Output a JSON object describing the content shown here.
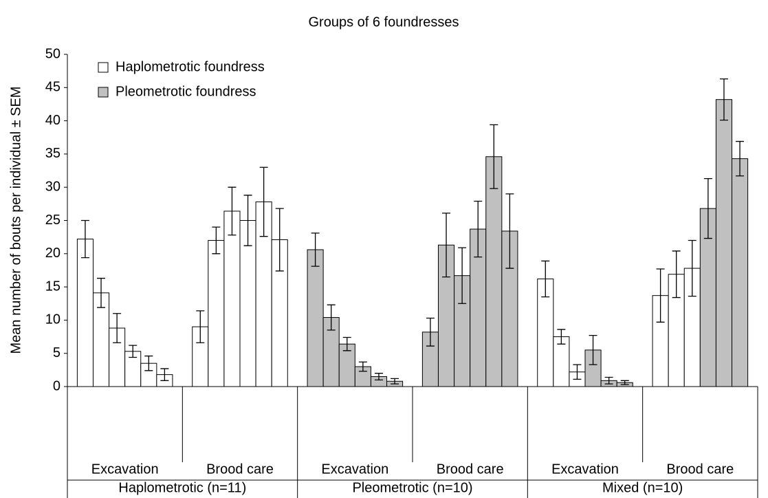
{
  "chart_data": {
    "type": "bar",
    "title": "Groups of 6 foundresses",
    "ylabel": "Mean number of bouts per individual ± SEM",
    "ylim": [
      0,
      50
    ],
    "yticks": [
      0,
      5,
      10,
      15,
      20,
      25,
      30,
      35,
      40,
      45,
      50
    ],
    "legend": "upper left",
    "groups": [
      {
        "label": "Haplometrotic (n=11)",
        "subgroups": [
          "Excavation",
          "Brood care"
        ]
      },
      {
        "label": "Pleometrotic (n=10)",
        "subgroups": [
          "Excavation",
          "Brood care"
        ]
      },
      {
        "label": "Mixed (n=10)",
        "subgroups": [
          "Excavation",
          "Brood care"
        ]
      }
    ],
    "series": [
      {
        "name": "Haplometrotic foundress",
        "color": "#ffffff",
        "values": [
          22.2,
          14.1,
          8.8,
          5.3,
          3.5,
          1.8,
          9,
          22,
          26.4,
          25,
          27.8,
          22.1,
          null,
          null,
          null,
          null,
          null,
          null,
          null,
          null,
          null,
          null,
          null,
          null,
          16.2,
          7.5,
          2.2,
          null,
          null,
          null,
          13.7,
          16.9,
          17.8,
          null,
          null,
          null
        ],
        "errors": [
          2.8,
          2.2,
          2.2,
          0.9,
          1.1,
          0.9,
          2.4,
          2,
          3.6,
          3.8,
          5.2,
          4.7,
          null,
          null,
          null,
          null,
          null,
          null,
          null,
          null,
          null,
          null,
          null,
          null,
          2.7,
          1.1,
          1.1,
          null,
          null,
          null,
          4,
          3.5,
          4.2,
          null,
          null,
          null
        ]
      },
      {
        "name": "Pleometrotic foundress",
        "color": "#c0c0c0",
        "values": [
          null,
          null,
          null,
          null,
          null,
          null,
          null,
          null,
          null,
          null,
          null,
          null,
          20.6,
          10.4,
          6.4,
          3,
          1.5,
          0.8,
          8.2,
          21.3,
          16.7,
          23.7,
          34.6,
          23.4,
          null,
          null,
          null,
          5.5,
          0.9,
          0.6,
          null,
          null,
          null,
          26.8,
          43.2,
          34.3
        ],
        "errors": [
          null,
          null,
          null,
          null,
          null,
          null,
          null,
          null,
          null,
          null,
          null,
          null,
          2.5,
          1.9,
          1,
          0.7,
          0.5,
          0.4,
          2.1,
          4.8,
          4.2,
          4.2,
          4.8,
          5.6,
          null,
          null,
          null,
          2.2,
          0.5,
          0.3,
          null,
          null,
          null,
          4.5,
          3.1,
          2.6
        ]
      }
    ]
  }
}
